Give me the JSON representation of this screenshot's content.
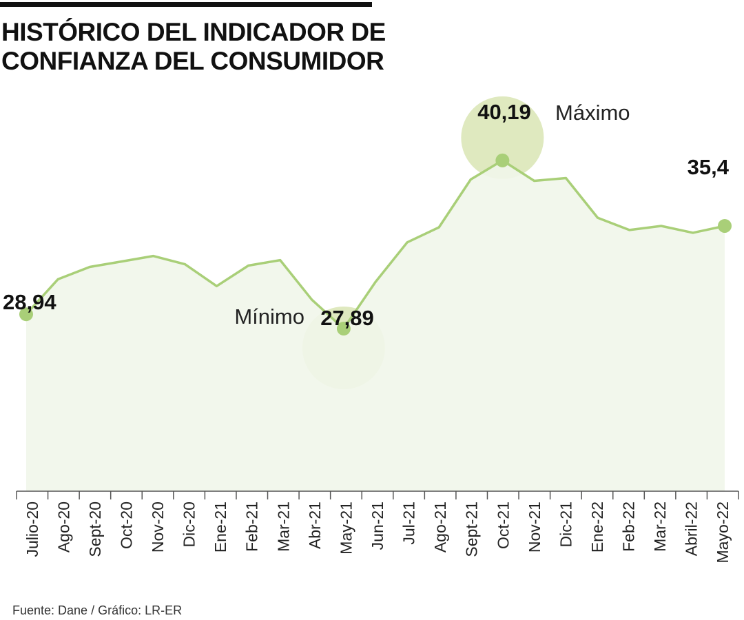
{
  "title_lines": [
    "HISTÓRICO DEL INDICADOR DE",
    "CONFIANZA DEL CONSUMIDOR"
  ],
  "source": "Fuente: Dane / Gráfico: LR-ER",
  "colors": {
    "line": "#a9cf78",
    "fill": "#f1f6ea",
    "circle": "#dfe9bf",
    "point": "#a9cf78",
    "text": "#111111"
  },
  "chart_data": {
    "type": "area",
    "title": "HISTÓRICO DEL INDICADOR DE CONFIANZA DEL CONSUMIDOR",
    "xlabel": "",
    "ylabel": "",
    "categories": [
      "Julio-20",
      "Ago-20",
      "Sept-20",
      "Oct-20",
      "Nov-20",
      "Dic-20",
      "Ene-21",
      "Feb-21",
      "Mar-21",
      "Abr-21",
      "May-21",
      "Jun-21",
      "Jul-21",
      "Ago-21",
      "Sept-21",
      "Oct-21",
      "Nov-21",
      "Dic-21",
      "Ene-22",
      "Feb-22",
      "Mar-22",
      "Abril-22",
      "Mayo-22"
    ],
    "values": [
      28.94,
      31.5,
      32.4,
      32.8,
      33.2,
      32.6,
      31.0,
      32.5,
      32.9,
      30.0,
      27.89,
      31.3,
      34.2,
      35.3,
      38.8,
      40.19,
      38.7,
      38.9,
      36.0,
      35.1,
      35.4,
      34.9,
      35.4
    ],
    "ylim": [
      16,
      42
    ],
    "grid": false,
    "annotations": [
      {
        "index": 0,
        "label": "28,94"
      },
      {
        "index": 10,
        "label": "27,89",
        "note": "Mínimo"
      },
      {
        "index": 15,
        "label": "40,19",
        "note": "Máximo"
      },
      {
        "index": 22,
        "label": "35,4"
      }
    ]
  }
}
